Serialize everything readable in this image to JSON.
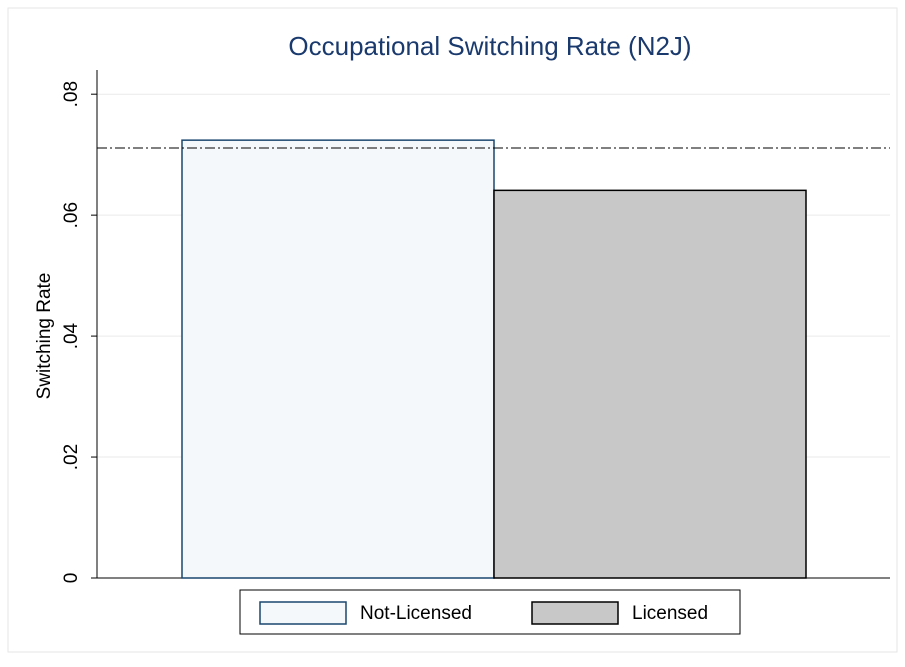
{
  "chart_data": {
    "type": "bar",
    "title": "Occupational Switching Rate (N2J)",
    "y_label": "Switching Rate",
    "series": [
      {
        "name": "Not-Licensed",
        "color": "#f4f8fa",
        "edge_color": "#1a476f",
        "values": [
          0.0724
        ]
      },
      {
        "name": "Licensed",
        "color": "#c8c8c8",
        "edge_color": "#000000",
        "values": [
          0.0641
        ]
      }
    ],
    "reference_line": 0.0711,
    "ylim": [
      0,
      0.084
    ],
    "yticks": [
      0,
      {
        "value": 0.02,
        "label": ".02"
      },
      {
        "value": 0.04,
        "label": ".04"
      },
      {
        "value": 0.06,
        "label": ".06"
      },
      {
        "value": 0.08,
        "label": ".08"
      }
    ],
    "grid": true,
    "legend": "bottom"
  }
}
